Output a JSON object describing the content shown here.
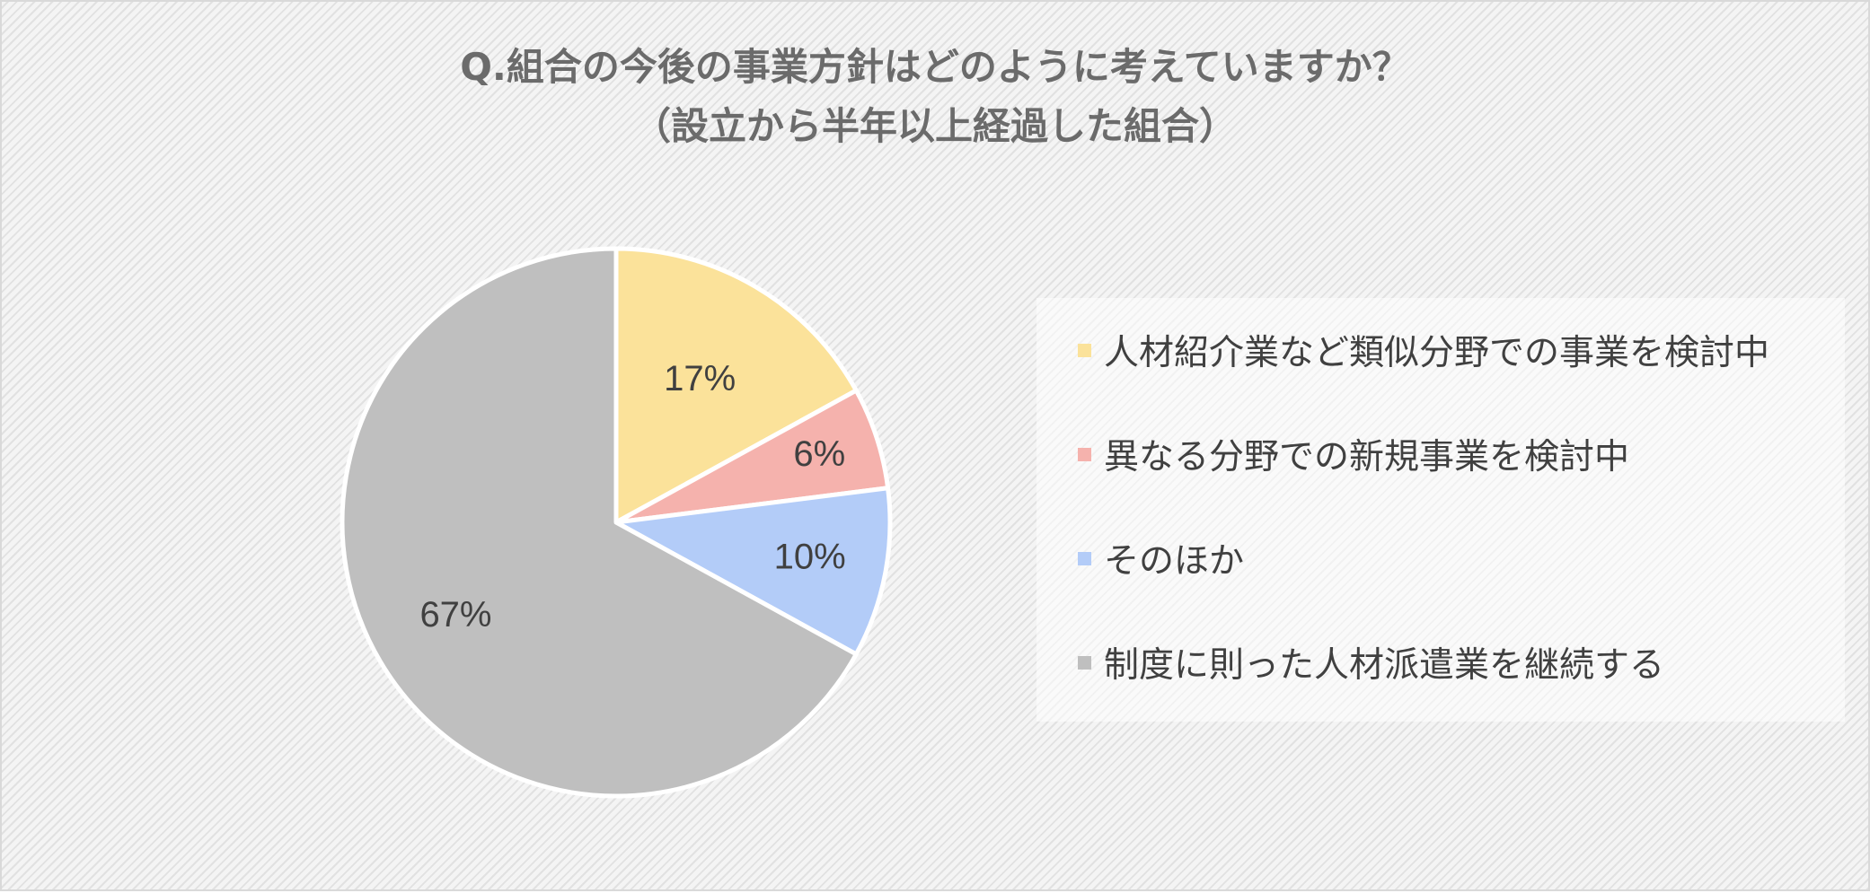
{
  "chart_data": {
    "type": "pie",
    "title": "Q.組合の今後の事業方針はどのように考えていますか？",
    "subtitle": "（設立から半年以上経過した組合）",
    "categories": [
      "人材紹介業など類似分野での事業を検討中",
      "異なる分野での新規事業を検討中",
      "そのほか",
      "制度に則った人材派遣業を継続する"
    ],
    "values": [
      17,
      6,
      10,
      67
    ],
    "labels": [
      "17%",
      "6%",
      "10%",
      "67%"
    ],
    "colors": [
      "#fbe29a",
      "#f5b2ad",
      "#b3ccf8",
      "#bfbfbf"
    ],
    "unit": "%",
    "legend": "right"
  }
}
